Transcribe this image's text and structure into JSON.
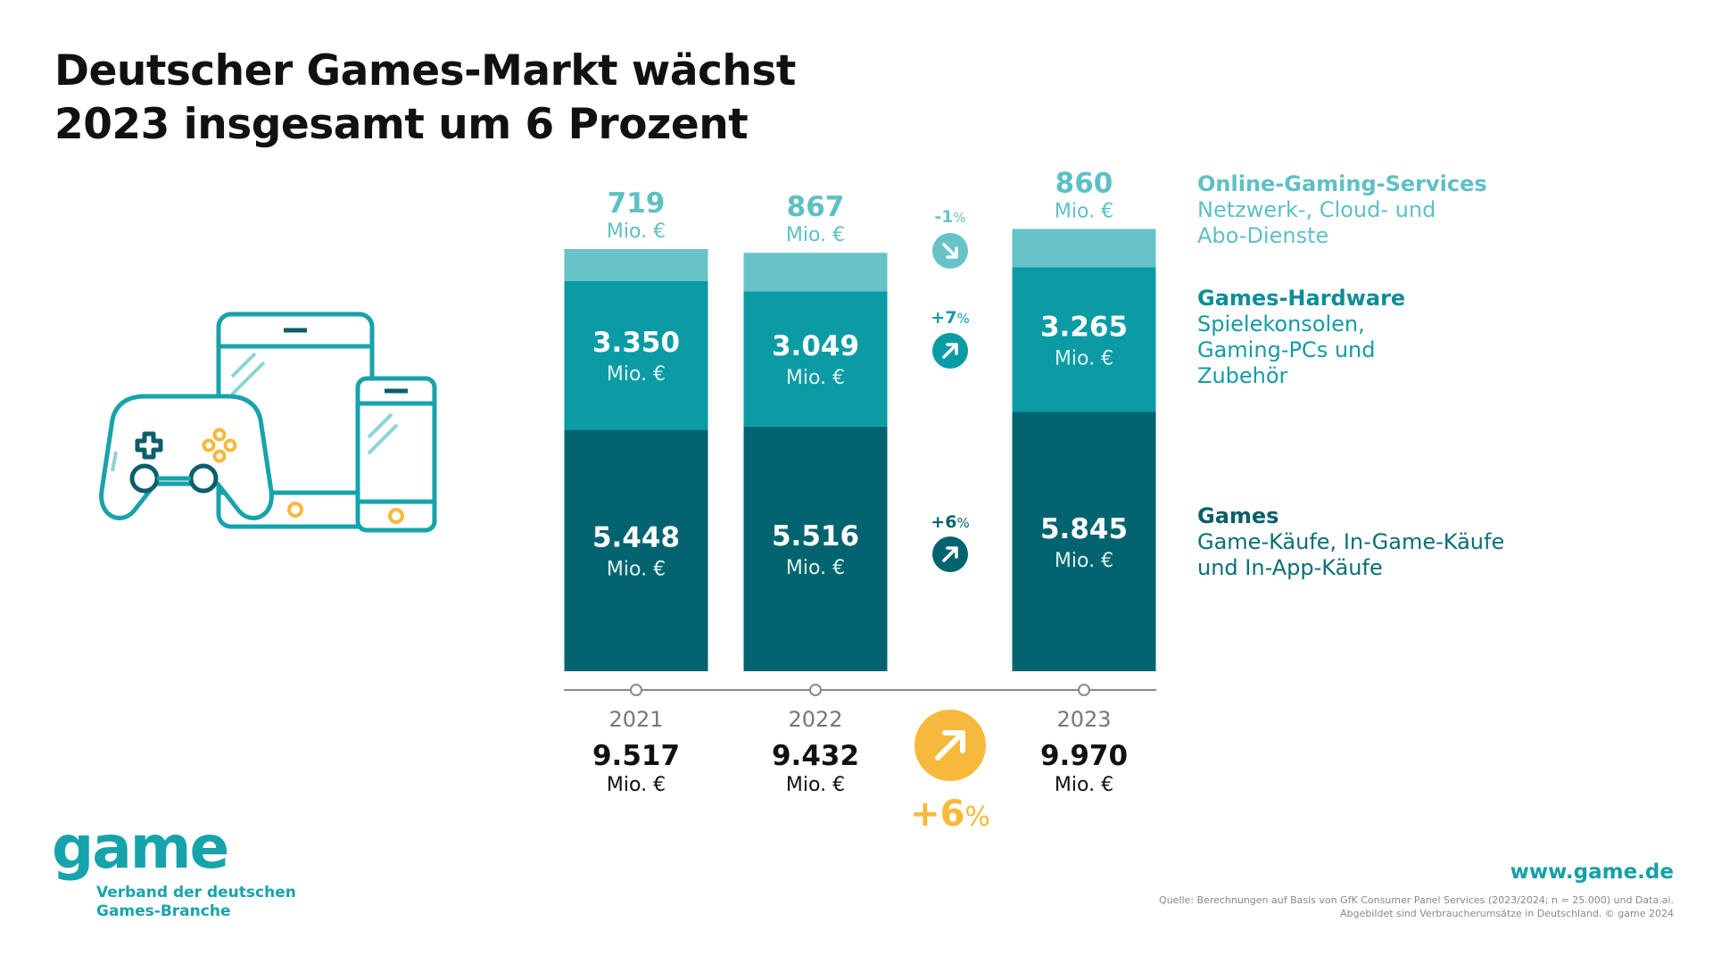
{
  "title_lines": [
    "Deutscher Games-Markt wächst",
    "2023 insgesamt um 6 Prozent"
  ],
  "unit": "Mio. €",
  "chart_data": {
    "type": "bar",
    "stacked": true,
    "categories": [
      "2021",
      "2022",
      "2023"
    ],
    "series": [
      {
        "name": "Games",
        "values": [
          5448,
          5516,
          5845
        ],
        "labels": [
          "5.448",
          "5.516",
          "5.845"
        ],
        "color": "#03646f"
      },
      {
        "name": "Games-Hardware",
        "values": [
          3350,
          3049,
          3265
        ],
        "labels": [
          "3.350",
          "3.049",
          "3.265"
        ],
        "color": "#0b9ba5"
      },
      {
        "name": "Online-Gaming-Services",
        "values": [
          719,
          867,
          860
        ],
        "labels": [
          "719",
          "867",
          "860"
        ],
        "color": "#67c3c8"
      }
    ],
    "totals": {
      "values": [
        9517,
        9432,
        9970
      ],
      "labels": [
        "9.517",
        "9.432",
        "9.970"
      ]
    },
    "changes": [
      {
        "series": "Online-Gaming-Services",
        "value": "-1",
        "direction": "down"
      },
      {
        "series": "Games-Hardware",
        "value": "+7",
        "direction": "up"
      },
      {
        "series": "Games",
        "value": "+6",
        "direction": "up"
      }
    ],
    "total_change": {
      "value": "+6",
      "direction": "up",
      "color": "#f6b93b"
    },
    "percent_sign": "%"
  },
  "legend": [
    {
      "title": "Online-Gaming-Services",
      "desc": "Netzwerk-, Cloud- und\nAbo-Dienste"
    },
    {
      "title": "Games-Hardware",
      "desc": "Spielekonsolen,\nGaming-PCs und\nZubehör"
    },
    {
      "title": "Games",
      "desc": "Game-Käufe, In-Game-Käufe\nund In-App-Käufe"
    }
  ],
  "logo": {
    "word": "game",
    "sub_lines": [
      "Verband der deutschen",
      "Games-Branche"
    ]
  },
  "website": "www.game.de",
  "source_lines": [
    "Quelle: Berechnungen auf Basis von GfK Consumer Panel Services (2023/2024; n = 25.000) und Data.ai.",
    "Abgebildet sind Verbraucherumsätze in Deutschland. © game 2024"
  ],
  "icons": [
    "gamepad-icon",
    "tablet-icon",
    "smartphone-icon"
  ],
  "colors": {
    "teal_dark": "#03646f",
    "teal_mid": "#0b9ba5",
    "teal_light": "#67c3c8",
    "accent_yellow": "#f6b93b",
    "axis_grey": "#8a8a8a"
  }
}
